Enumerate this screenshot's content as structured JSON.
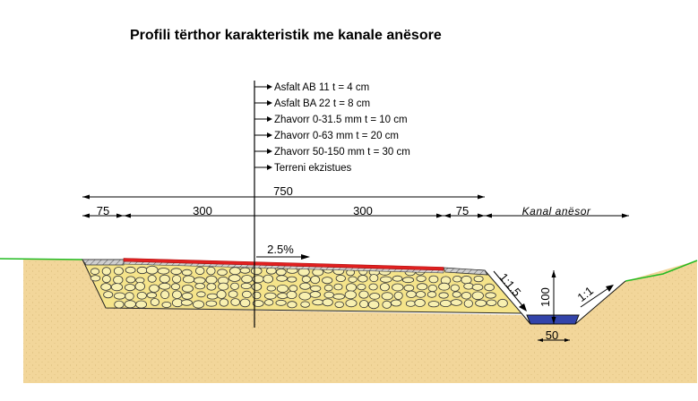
{
  "title": "Profili tërthor karakteristik me kanale anësore",
  "layers": [
    "Asfalt AB 11 t = 4 cm",
    "Asfalt BA 22 t = 8 cm",
    "Zhavorr 0-31.5 mm  t = 10 cm",
    "Zhavorr 0-63 mm t = 20 cm",
    "Zhavorr 50-150 mm t = 30 cm",
    "Terreni ekzistues"
  ],
  "dimensions": {
    "total": "750",
    "shoulder_left": "75",
    "lane_left": "300",
    "lane_right": "300",
    "shoulder_right": "75",
    "channel_label": "Kanal  anësor"
  },
  "slope": "2.5%",
  "embankment_slope": "1:1.5",
  "channel_slope": "1:1",
  "channel_depth": "100",
  "channel_bottom": "50",
  "colors": {
    "soil": "#f2d69a",
    "gravel_base": "#f5e48a",
    "stone": "#f8f0b0",
    "asphalt_red": "#e02020",
    "terrain_green": "#22bb22",
    "water": "#3344aa"
  }
}
